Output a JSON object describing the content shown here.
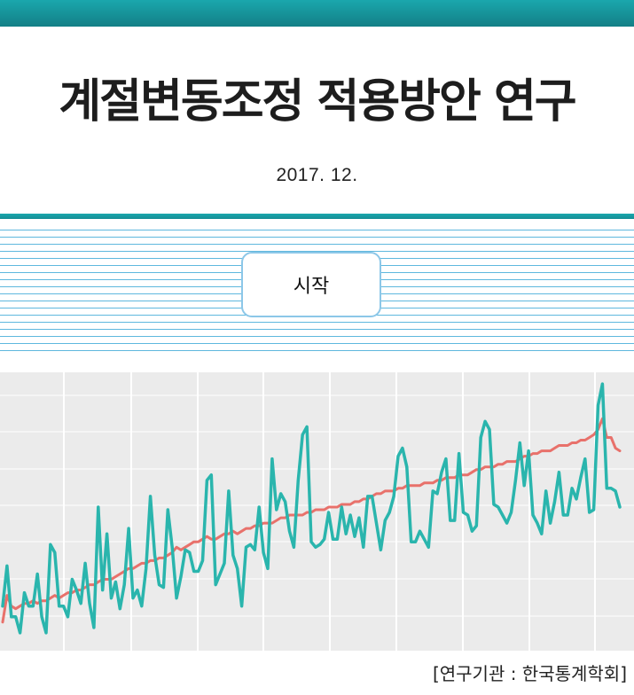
{
  "cover": {
    "title": "계절변동조정 적용방안 연구",
    "date": "2017. 12.",
    "start_label": "시작",
    "institution": "[연구기관 : 한국통계학회]"
  },
  "colors": {
    "accent": "#1aa7ad",
    "stripe": "#5fb8de",
    "chart_bg": "#ebebeb",
    "grid": "#ffffff",
    "series_raw": "#2ab5ad",
    "series_adjusted": "#e8716b"
  },
  "chart_data": {
    "type": "line",
    "title": "",
    "xlabel": "",
    "ylabel": "",
    "grid": true,
    "legend": "none",
    "x_gridlines": 9,
    "y_gridlines": 7,
    "ylim": [
      0,
      100
    ],
    "series": [
      {
        "color": "#2ab5ad",
        "values": [
          14,
          29,
          10,
          10,
          4,
          19,
          14,
          14,
          26,
          10,
          4,
          37,
          34,
          14,
          14,
          10,
          24,
          20,
          15,
          30,
          15,
          6,
          51,
          20,
          41,
          17,
          23,
          13,
          22,
          43,
          17,
          20,
          14,
          28,
          55,
          33,
          22,
          21,
          50,
          36,
          17,
          25,
          35,
          34,
          27,
          27,
          31,
          61,
          63,
          22,
          26,
          30,
          57,
          33,
          28,
          14,
          36,
          37,
          35,
          51,
          34,
          28,
          69,
          50,
          56,
          53,
          42,
          36,
          61,
          78,
          81,
          38,
          36,
          37,
          39,
          49,
          39,
          39,
          51,
          41,
          48,
          40,
          47,
          36,
          55,
          55,
          45,
          35,
          46,
          49,
          55,
          70,
          73,
          66,
          38,
          38,
          42,
          39,
          36,
          57,
          56,
          64,
          69,
          46,
          46,
          71,
          49,
          48,
          42,
          44,
          77,
          83,
          80,
          52,
          51,
          48,
          45,
          49,
          61,
          75,
          59,
          72,
          48,
          45,
          41,
          57,
          45,
          53,
          64,
          48,
          48,
          58,
          54,
          62,
          69,
          49,
          50,
          89,
          97,
          58,
          58,
          57,
          51
        ]
      },
      {
        "color": "#e8716b",
        "values": [
          8,
          18,
          14,
          13,
          14,
          15,
          15,
          16,
          15,
          16,
          16,
          17,
          18,
          17,
          18,
          19,
          19,
          20,
          20,
          21,
          22,
          22,
          23,
          24,
          24,
          24,
          25,
          26,
          27,
          28,
          28,
          29,
          30,
          30,
          31,
          31,
          32,
          32,
          33,
          34,
          36,
          35,
          36,
          37,
          38,
          38,
          39,
          40,
          39,
          39,
          40,
          41,
          41,
          42,
          41,
          42,
          43,
          43,
          44,
          44,
          45,
          45,
          45,
          46,
          47,
          47,
          48,
          48,
          48,
          48,
          49,
          49,
          50,
          50,
          50,
          51,
          51,
          51,
          52,
          52,
          52,
          53,
          53,
          54,
          54,
          55,
          56,
          56,
          57,
          57,
          57,
          58,
          58,
          59,
          59,
          59,
          59,
          60,
          60,
          60,
          61,
          61,
          62,
          62,
          62,
          63,
          63,
          63,
          64,
          65,
          65,
          66,
          66,
          66,
          67,
          67,
          68,
          68,
          68,
          69,
          70,
          70,
          71,
          71,
          72,
          72,
          72,
          73,
          74,
          74,
          74,
          75,
          75,
          76,
          76,
          77,
          78,
          80,
          84,
          77,
          77,
          73,
          72
        ]
      }
    ]
  }
}
